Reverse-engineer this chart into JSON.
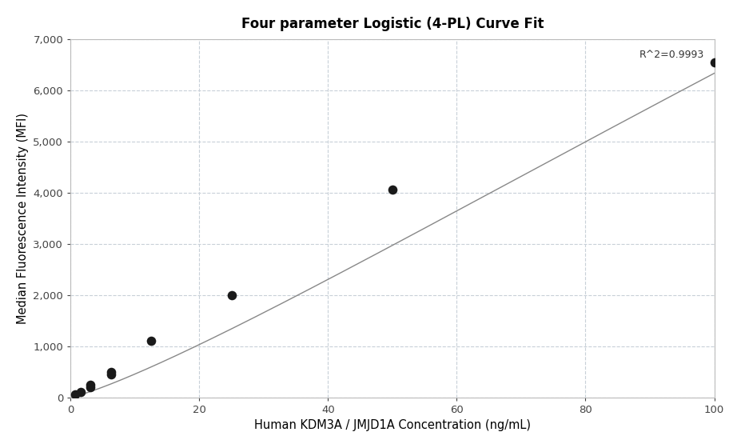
{
  "title": "Four parameter Logistic (4-PL) Curve Fit",
  "xlabel": "Human KDM3A / JMJD1A Concentration (ng/mL)",
  "ylabel": "Median Fluorescence Intensity (MFI)",
  "scatter_x": [
    0.781,
    1.563,
    3.125,
    3.125,
    6.25,
    6.25,
    12.5,
    25.0,
    50.0,
    100.0
  ],
  "scatter_y": [
    50,
    100,
    200,
    250,
    450,
    500,
    1100,
    2000,
    4050,
    6550
  ],
  "r_squared": "R^2=0.9993",
  "xlim": [
    0,
    100
  ],
  "ylim": [
    0,
    7000
  ],
  "yticks": [
    0,
    1000,
    2000,
    3000,
    4000,
    5000,
    6000,
    7000
  ],
  "ytick_labels": [
    "0",
    "1,000",
    "2,000",
    "3,000",
    "4,000",
    "5,000",
    "6,000",
    "7,000"
  ],
  "xticks": [
    0,
    20,
    40,
    60,
    80,
    100
  ],
  "dot_color": "#1a1a1a",
  "line_color": "#888888",
  "background_color": "#ffffff",
  "grid_color": "#c8d0d8",
  "title_fontsize": 12,
  "label_fontsize": 10.5,
  "tick_fontsize": 9.5
}
